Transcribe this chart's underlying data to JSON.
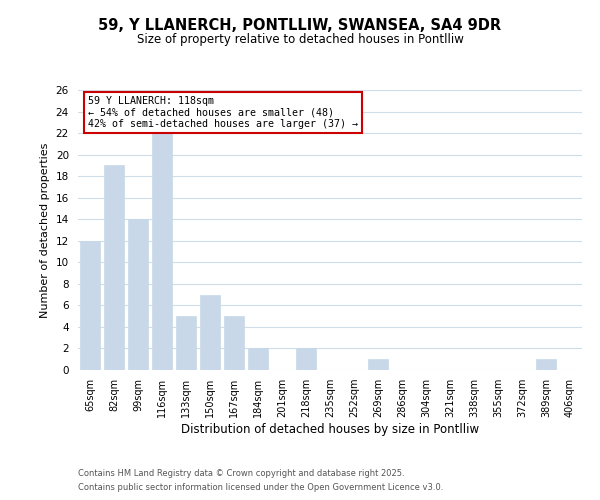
{
  "title": "59, Y LLANERCH, PONTLLIW, SWANSEA, SA4 9DR",
  "subtitle": "Size of property relative to detached houses in Pontlliw",
  "xlabel": "Distribution of detached houses by size in Pontlliw",
  "ylabel": "Number of detached properties",
  "bar_color": "#c8d8e8",
  "bar_edge_color": "#c8d8e8",
  "categories": [
    "65sqm",
    "82sqm",
    "99sqm",
    "116sqm",
    "133sqm",
    "150sqm",
    "167sqm",
    "184sqm",
    "201sqm",
    "218sqm",
    "235sqm",
    "252sqm",
    "269sqm",
    "286sqm",
    "304sqm",
    "321sqm",
    "338sqm",
    "355sqm",
    "372sqm",
    "389sqm",
    "406sqm"
  ],
  "values": [
    12,
    19,
    14,
    22,
    5,
    7,
    5,
    2,
    0,
    2,
    0,
    0,
    1,
    0,
    0,
    0,
    0,
    0,
    0,
    1,
    0
  ],
  "ylim": [
    0,
    26
  ],
  "yticks": [
    0,
    2,
    4,
    6,
    8,
    10,
    12,
    14,
    16,
    18,
    20,
    22,
    24,
    26
  ],
  "annotation_line1": "59 Y LLANERCH: 118sqm",
  "annotation_line2": "← 54% of detached houses are smaller (48)",
  "annotation_line3": "42% of semi-detached houses are larger (37) →",
  "box_edge_color": "#cc0000",
  "background_color": "#ffffff",
  "grid_color": "#d0dce8",
  "footer_line1": "Contains HM Land Registry data © Crown copyright and database right 2025.",
  "footer_line2": "Contains public sector information licensed under the Open Government Licence v3.0."
}
